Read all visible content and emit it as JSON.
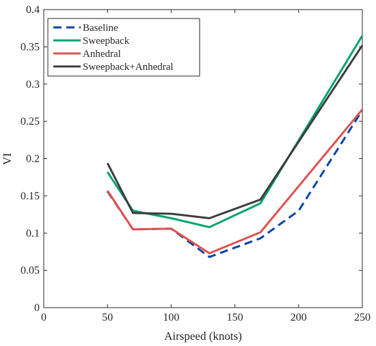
{
  "chart_data": {
    "type": "line",
    "title": "",
    "xlabel": "Airspeed (knots)",
    "ylabel": "VI",
    "xlim": [
      0,
      250
    ],
    "ylim": [
      0,
      0.4
    ],
    "x_ticks": [
      0,
      50,
      100,
      150,
      200,
      250
    ],
    "x_tick_labels": [
      "0",
      "50",
      "100",
      "150",
      "200",
      "250"
    ],
    "y_ticks": [
      0,
      0.05,
      0.1,
      0.15,
      0.2,
      0.25,
      0.3,
      0.35,
      0.4
    ],
    "y_tick_labels": [
      "0",
      "0.05",
      "0.1",
      "0.15",
      "0.2",
      "0.25",
      "0.3",
      "0.35",
      "0.4"
    ],
    "grid": false,
    "legend_position": "top-left",
    "series": [
      {
        "name": "Baseline",
        "color": "#0044aa",
        "dashed": true,
        "x": [
          50,
          70,
          100,
          130,
          170,
          200,
          250
        ],
        "y": [
          0.156,
          0.105,
          0.106,
          0.068,
          0.093,
          0.13,
          0.265
        ]
      },
      {
        "name": "Sweepback",
        "color": "#00a36c",
        "dashed": false,
        "x": [
          50,
          70,
          100,
          130,
          170,
          250
        ],
        "y": [
          0.182,
          0.13,
          0.12,
          0.108,
          0.14,
          0.365
        ]
      },
      {
        "name": "Anhedral",
        "color": "#e05050",
        "dashed": false,
        "x": [
          50,
          70,
          100,
          130,
          170,
          250
        ],
        "y": [
          0.157,
          0.105,
          0.106,
          0.073,
          0.101,
          0.266
        ]
      },
      {
        "name": "Sweepback+Anhedral",
        "color": "#3d3d3d",
        "dashed": false,
        "x": [
          50,
          70,
          100,
          130,
          170,
          250
        ],
        "y": [
          0.194,
          0.127,
          0.126,
          0.12,
          0.145,
          0.352
        ]
      }
    ]
  }
}
